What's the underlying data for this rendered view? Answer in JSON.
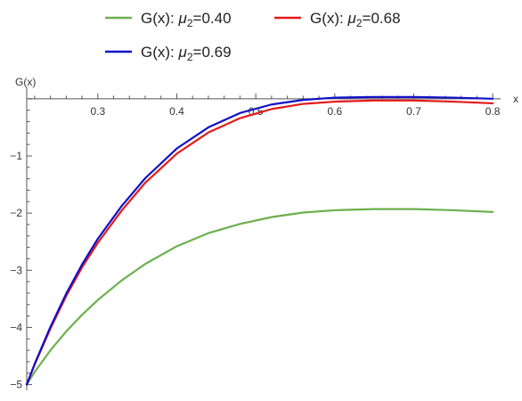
{
  "chart_data": {
    "type": "line",
    "title": "",
    "xlabel": "x",
    "ylabel": "G(x)",
    "xlim": [
      0.21,
      0.81
    ],
    "ylim": [
      -5.1,
      0.2
    ],
    "x_ticks": [
      0.3,
      0.4,
      0.5,
      0.6,
      0.7,
      0.8
    ],
    "x_tick_labels": [
      "0.3",
      "0.4",
      "0.5",
      "0.6",
      "0.7",
      "0.8"
    ],
    "y_ticks": [
      -1,
      -2,
      -3,
      -4,
      -5
    ],
    "y_tick_labels": [
      "−1",
      "−2",
      "−3",
      "−4",
      "−5"
    ],
    "grid": false,
    "legend_position": "top",
    "x": [
      0.21,
      0.22,
      0.24,
      0.26,
      0.28,
      0.3,
      0.33,
      0.36,
      0.4,
      0.44,
      0.48,
      0.52,
      0.56,
      0.6,
      0.65,
      0.7,
      0.75,
      0.8
    ],
    "series": [
      {
        "name": "G(x): μ2=0.40",
        "label_main": "G(x): ",
        "label_mu": "μ",
        "label_sub": "2",
        "label_value": "=0.40",
        "color": "#6cb04e",
        "values": [
          -5.0,
          -4.78,
          -4.4,
          -4.07,
          -3.78,
          -3.52,
          -3.18,
          -2.89,
          -2.58,
          -2.35,
          -2.19,
          -2.07,
          -1.99,
          -1.95,
          -1.93,
          -1.93,
          -1.95,
          -1.98
        ]
      },
      {
        "name": "G(x): μ2=0.68",
        "label_main": "G(x): ",
        "label_mu": "μ",
        "label_sub": "2",
        "label_value": "=0.68",
        "color": "#e41a1c",
        "values": [
          -5.0,
          -4.65,
          -4.02,
          -3.45,
          -2.95,
          -2.52,
          -1.96,
          -1.47,
          -0.96,
          -0.59,
          -0.34,
          -0.18,
          -0.09,
          -0.05,
          -0.03,
          -0.03,
          -0.05,
          -0.08
        ]
      },
      {
        "name": "G(x): μ2=0.69",
        "label_main": "G(x): ",
        "label_mu": "μ",
        "label_sub": "2",
        "label_value": "=0.69",
        "color": "#1010c8",
        "values": [
          -5.0,
          -4.64,
          -3.99,
          -3.41,
          -2.9,
          -2.45,
          -1.88,
          -1.39,
          -0.87,
          -0.5,
          -0.25,
          -0.1,
          -0.02,
          0.02,
          0.03,
          0.03,
          0.02,
          0.0
        ]
      }
    ]
  }
}
